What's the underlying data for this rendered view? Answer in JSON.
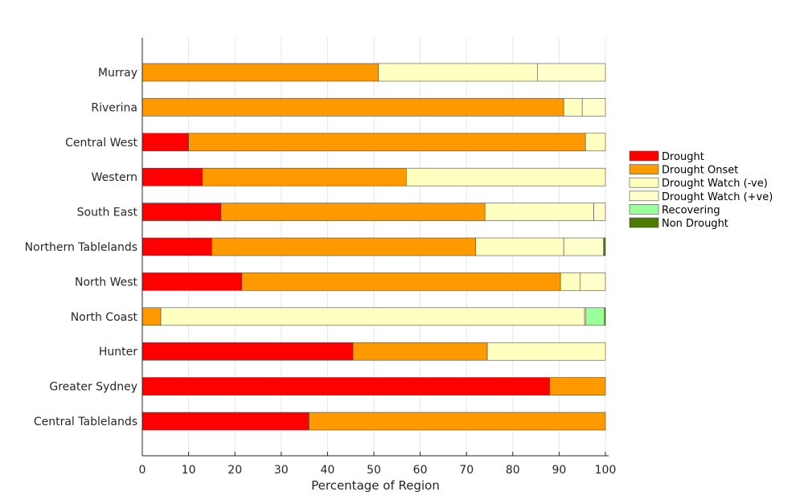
{
  "chart_data": {
    "type": "bar",
    "orientation": "horizontal",
    "stacked": true,
    "xlabel": "Percentage of Region",
    "xlim": [
      0,
      100
    ],
    "xticks": [
      0,
      10,
      20,
      30,
      40,
      50,
      60,
      70,
      80,
      90,
      100
    ],
    "grid": "vertical",
    "legend_position": "right",
    "categories": [
      "Murray",
      "Riverina",
      "Central West",
      "Western",
      "South East",
      "Northern Tablelands",
      "North West",
      "North Coast",
      "Hunter",
      "Greater Sydney",
      "Central Tablelands"
    ],
    "series": [
      {
        "name": "Drought",
        "color": "#ff0000",
        "values": [
          0,
          0,
          10,
          13,
          17,
          15,
          21.5,
          0,
          45.5,
          88,
          36
        ]
      },
      {
        "name": "Drought Onset",
        "color": "#ff9900",
        "values": [
          51,
          91,
          85.7,
          44,
          57,
          57,
          68.8,
          4,
          29,
          12,
          64
        ]
      },
      {
        "name": "Drought Watch (-ve)",
        "color": "#ffffc0",
        "values": [
          34.3,
          4,
          4.3,
          43,
          23.5,
          19,
          4.2,
          91.5,
          25.5,
          0,
          0
        ]
      },
      {
        "name": "Drought Watch (+ve)",
        "color": "#ffffcc",
        "values": [
          14.7,
          5,
          0,
          0,
          2.5,
          8.6,
          5.5,
          0.3,
          0,
          0,
          0
        ]
      },
      {
        "name": "Recovering",
        "color": "#99ff99",
        "values": [
          0,
          0,
          0,
          0,
          0,
          0,
          0,
          4,
          0,
          0,
          0
        ]
      },
      {
        "name": "Non Drought",
        "color": "#4d7a00",
        "values": [
          0,
          0,
          0,
          0,
          0,
          0.4,
          0,
          0.2,
          0,
          0,
          0
        ]
      }
    ]
  }
}
